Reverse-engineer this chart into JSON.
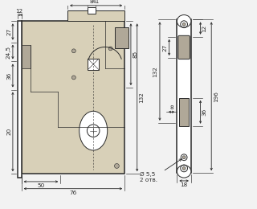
{
  "bg_color": "#f2f2f2",
  "line_color": "#2a2a2a",
  "dim_color": "#2a2a2a",
  "fill_body": "#d8d0b8",
  "fill_white": "#ffffff",
  "fill_gray": "#b0a898",
  "fig_width": 3.2,
  "fig_height": 2.6,
  "dpi": 100,
  "fs": 5.2
}
